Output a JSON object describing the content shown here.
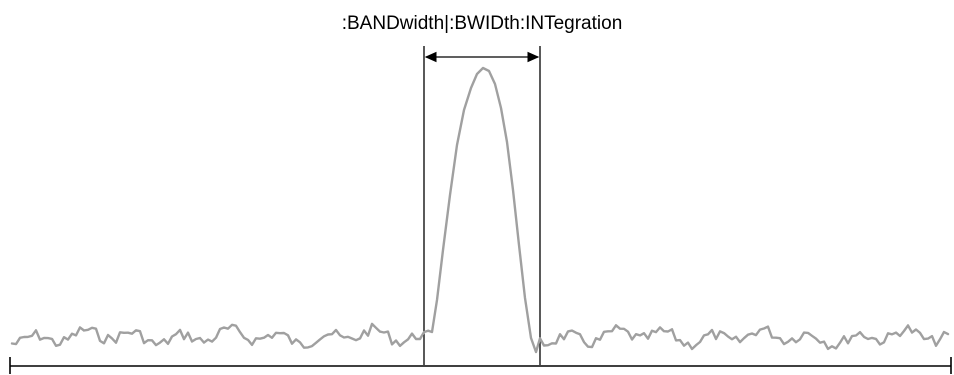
{
  "diagram": {
    "label": ":BANDwidth|:BWIDth:INTegration",
    "colors": {
      "trace": "#a0a0a0",
      "line": "#000000",
      "background": "#ffffff"
    }
  }
}
